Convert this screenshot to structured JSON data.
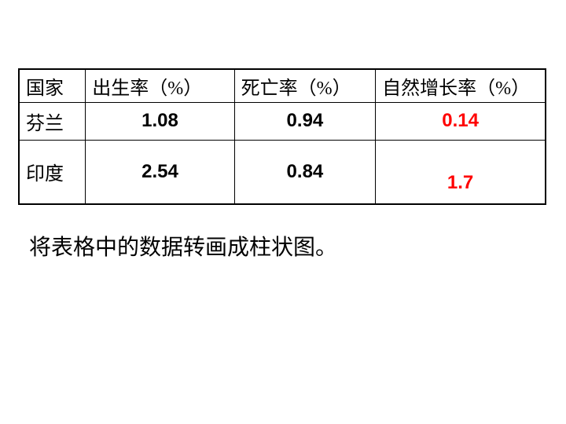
{
  "table": {
    "headers": {
      "country": "国家",
      "birth_rate": "出生率（%）",
      "death_rate": "死亡率（%）",
      "growth_rate": "自然增长率（%）"
    },
    "rows": [
      {
        "country": "芬兰",
        "birth_rate": "1.08",
        "death_rate": "0.94",
        "growth_rate": "0.14"
      },
      {
        "country": "印度",
        "birth_rate": "2.54",
        "death_rate": "0.84",
        "growth_rate": "1.7"
      }
    ],
    "columns": {
      "country_width": 85,
      "birth_width": 190,
      "death_width": 180,
      "growth_width": 217
    },
    "border_color": "#000000",
    "highlight_color": "#ff0000",
    "text_color": "#000000",
    "header_fontsize": 24,
    "value_fontsize": 24,
    "background_color": "#ffffff"
  },
  "instruction": "将表格中的数据转画成柱状图。",
  "instruction_fontsize": 28
}
